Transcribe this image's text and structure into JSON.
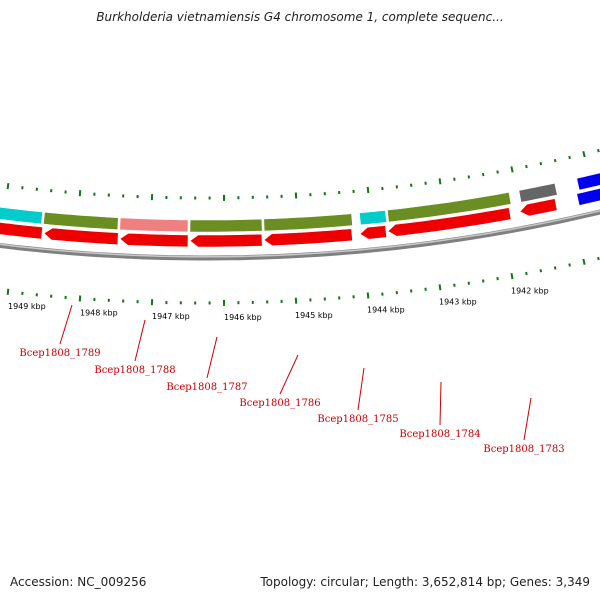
{
  "title": "Burkholderia vietnamiensis G4 chromosome 1, complete sequenc...",
  "footer": {
    "accession": "Accession: NC_009256",
    "stats": "Topology: circular; Length: 3,652,814 bp; Genes: 3,349"
  },
  "colors": {
    "backbone": "#808080",
    "tick": "#117711",
    "forward_gene": "#ee0000",
    "label": "#cc0000",
    "cog_olive": "#6b8e23",
    "cog_cyan": "#00cccc",
    "cog_pink": "#f08080",
    "cog_gray": "#666666",
    "cog_blue": "#0000ee",
    "cog_steel": "#4682b4"
  },
  "scale_labels": [
    "1949 kbp",
    "1948 kbp",
    "1947 kbp",
    "1946 kbp",
    "1945 kbp",
    "1944 kbp",
    "1943 kbp",
    "1942 kbp"
  ],
  "genes": [
    {
      "label": "Bcep1808_1789",
      "strand": "reverse",
      "cog_color": "cyan"
    },
    {
      "label": "Bcep1808_1788",
      "strand": "reverse",
      "cog_color": "olive"
    },
    {
      "label": "Bcep1808_1787",
      "strand": "reverse",
      "cog_color": "pink"
    },
    {
      "label": "Bcep1808_1786",
      "strand": "reverse",
      "cog_color": "olive"
    },
    {
      "label": "Bcep1808_1785",
      "strand": "reverse",
      "cog_color": "olive"
    },
    {
      "label": "Bcep1808_1784",
      "strand": "reverse",
      "cog_color": "cyan"
    },
    {
      "label": "Bcep1808_1783",
      "strand": "reverse",
      "cog_color": "olive"
    },
    {
      "label": "",
      "strand": "reverse",
      "cog_color": "gray"
    },
    {
      "label": "",
      "strand": "forward",
      "cog_color": "blue"
    }
  ]
}
